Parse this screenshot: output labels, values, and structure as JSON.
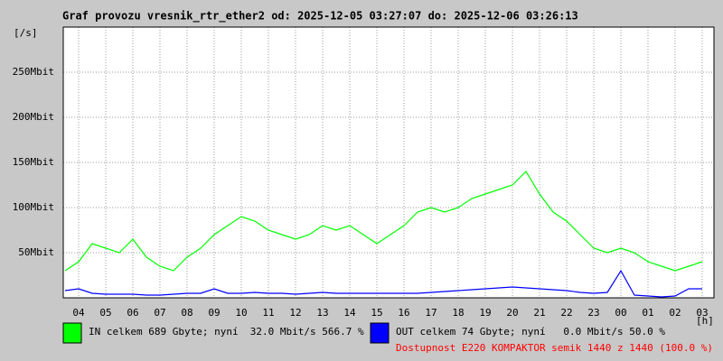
{
  "chart_data": {
    "type": "line",
    "title": "Graf provozu vresnik_rtr_ether2 od: 2025-12-05 03:27:07 do: 2025-12-06 03:26:13",
    "y_unit": "[/s]",
    "x_unit": "[h]",
    "categories": [
      null,
      "04",
      null,
      "05",
      null,
      "06",
      null,
      "07",
      null,
      "08",
      null,
      "09",
      null,
      "10",
      null,
      "11",
      null,
      "12",
      null,
      "13",
      null,
      "14",
      null,
      "15",
      null,
      "16",
      null,
      "17",
      null,
      "18",
      null,
      "19",
      null,
      "20",
      null,
      "21",
      null,
      "22",
      null,
      "23",
      null,
      "00",
      null,
      "01",
      null,
      "02",
      null,
      "03"
    ],
    "series": [
      {
        "name": "IN celkem 689 Gbyte; nyní  32.0 Mbit/s 566.7 %",
        "color": "#00ff00",
        "values": [
          30,
          40,
          60,
          55,
          50,
          65,
          45,
          35,
          30,
          45,
          55,
          70,
          80,
          90,
          85,
          75,
          70,
          65,
          70,
          80,
          75,
          80,
          70,
          60,
          70,
          80,
          95,
          100,
          95,
          100,
          110,
          115,
          120,
          125,
          140,
          115,
          95,
          85,
          70,
          55,
          50,
          55,
          50,
          40,
          35,
          30,
          35,
          40
        ]
      },
      {
        "name": "OUT celkem 74 Gbyte; nyní   0.0 Mbit/s 50.0 %",
        "color": "#0000ff",
        "values": [
          8,
          10,
          5,
          4,
          4,
          4,
          3,
          3,
          4,
          5,
          5,
          10,
          5,
          5,
          6,
          5,
          5,
          4,
          5,
          6,
          5,
          5,
          5,
          5,
          5,
          5,
          5,
          6,
          7,
          8,
          9,
          10,
          11,
          12,
          11,
          10,
          9,
          8,
          6,
          5,
          6,
          30,
          3,
          2,
          1,
          2,
          10,
          10
        ]
      }
    ],
    "annotation": "Dostupnost E220 KOMPAKTOR semik 1440 z 1440 (100.0 %)",
    "ylim": [
      0,
      300
    ],
    "yticks": [
      {
        "value": 50,
        "label": "50Mbit"
      },
      {
        "value": 100,
        "label": "100Mbit"
      },
      {
        "value": 150,
        "label": "150Mbit"
      },
      {
        "value": 200,
        "label": "200Mbit"
      },
      {
        "value": 250,
        "label": "250Mbit"
      }
    ],
    "grid": true
  }
}
